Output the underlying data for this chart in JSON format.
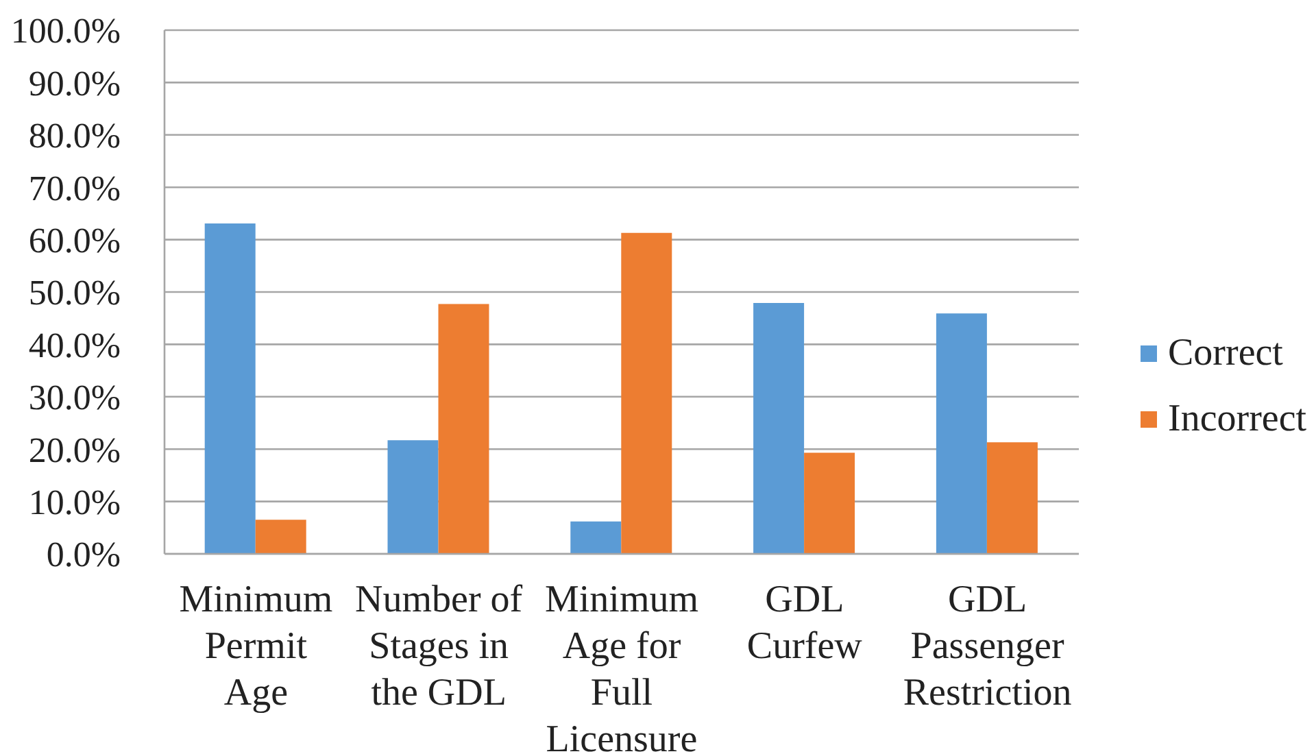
{
  "chart_data": {
    "type": "bar",
    "categories": [
      "Minimum Permit Age",
      "Number of Stages in the GDL",
      "Minimum Age for Full Licensure",
      "GDL Curfew",
      "GDL Passenger Restriction"
    ],
    "series": [
      {
        "name": "Correct",
        "color": "#5b9bd5",
        "values": [
          63.1,
          21.7,
          6.2,
          47.9,
          45.9
        ]
      },
      {
        "name": "Incorrect",
        "color": "#ed7d31",
        "values": [
          6.5,
          47.7,
          61.3,
          19.3,
          21.3
        ]
      }
    ],
    "ylim": [
      0,
      100
    ],
    "yticks": [
      {
        "value": 0,
        "label": "0.0%"
      },
      {
        "value": 10,
        "label": "10.0%"
      },
      {
        "value": 20,
        "label": "20.0%"
      },
      {
        "value": 30,
        "label": "30.0%"
      },
      {
        "value": 40,
        "label": "40.0%"
      },
      {
        "value": 50,
        "label": "50.0%"
      },
      {
        "value": 60,
        "label": "60.0%"
      },
      {
        "value": 70,
        "label": "70.0%"
      },
      {
        "value": 80,
        "label": "80.0%"
      },
      {
        "value": 90,
        "label": "90.0%"
      },
      {
        "value": 100,
        "label": "100.0%"
      }
    ],
    "grid": "y",
    "legend": "right"
  }
}
